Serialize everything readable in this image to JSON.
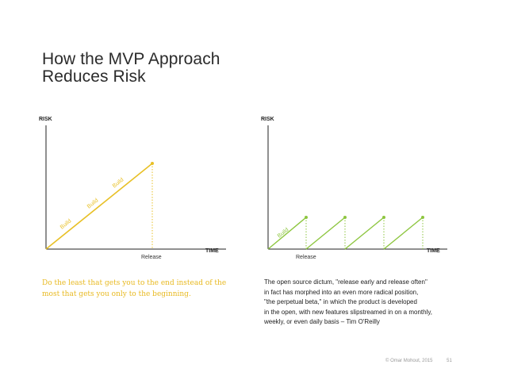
{
  "title": {
    "line1": "How the MVP Approach",
    "line2": "Reduces Risk"
  },
  "left_diagram": {
    "y_axis": "RISK",
    "x_axis": "TIME",
    "release_label": "Release",
    "build_labels": [
      "Build",
      "Build",
      "Build"
    ],
    "color": "#e8c026"
  },
  "right_diagram": {
    "y_axis": "RISK",
    "x_axis": "TIME",
    "release_label": "Release",
    "build_label": "Build",
    "color": "#8dc63f"
  },
  "left_caption": {
    "line1": "Do the least that gets you to the end instead of the",
    "line2": "most that gets you only to the beginning."
  },
  "right_caption": {
    "lines": [
      "The open source dictum, \"release early and release often\"",
      "in fact has morphed into an even more radical position,",
      "\"the perpetual beta,\" in which the product is developed",
      "in the open, with new features slipstreamed in on a monthly,",
      "weekly, or even daily basis – Tim O'Reilly"
    ]
  },
  "footer": {
    "copyright": "© Omar Mohout, 2015",
    "page": "51"
  }
}
